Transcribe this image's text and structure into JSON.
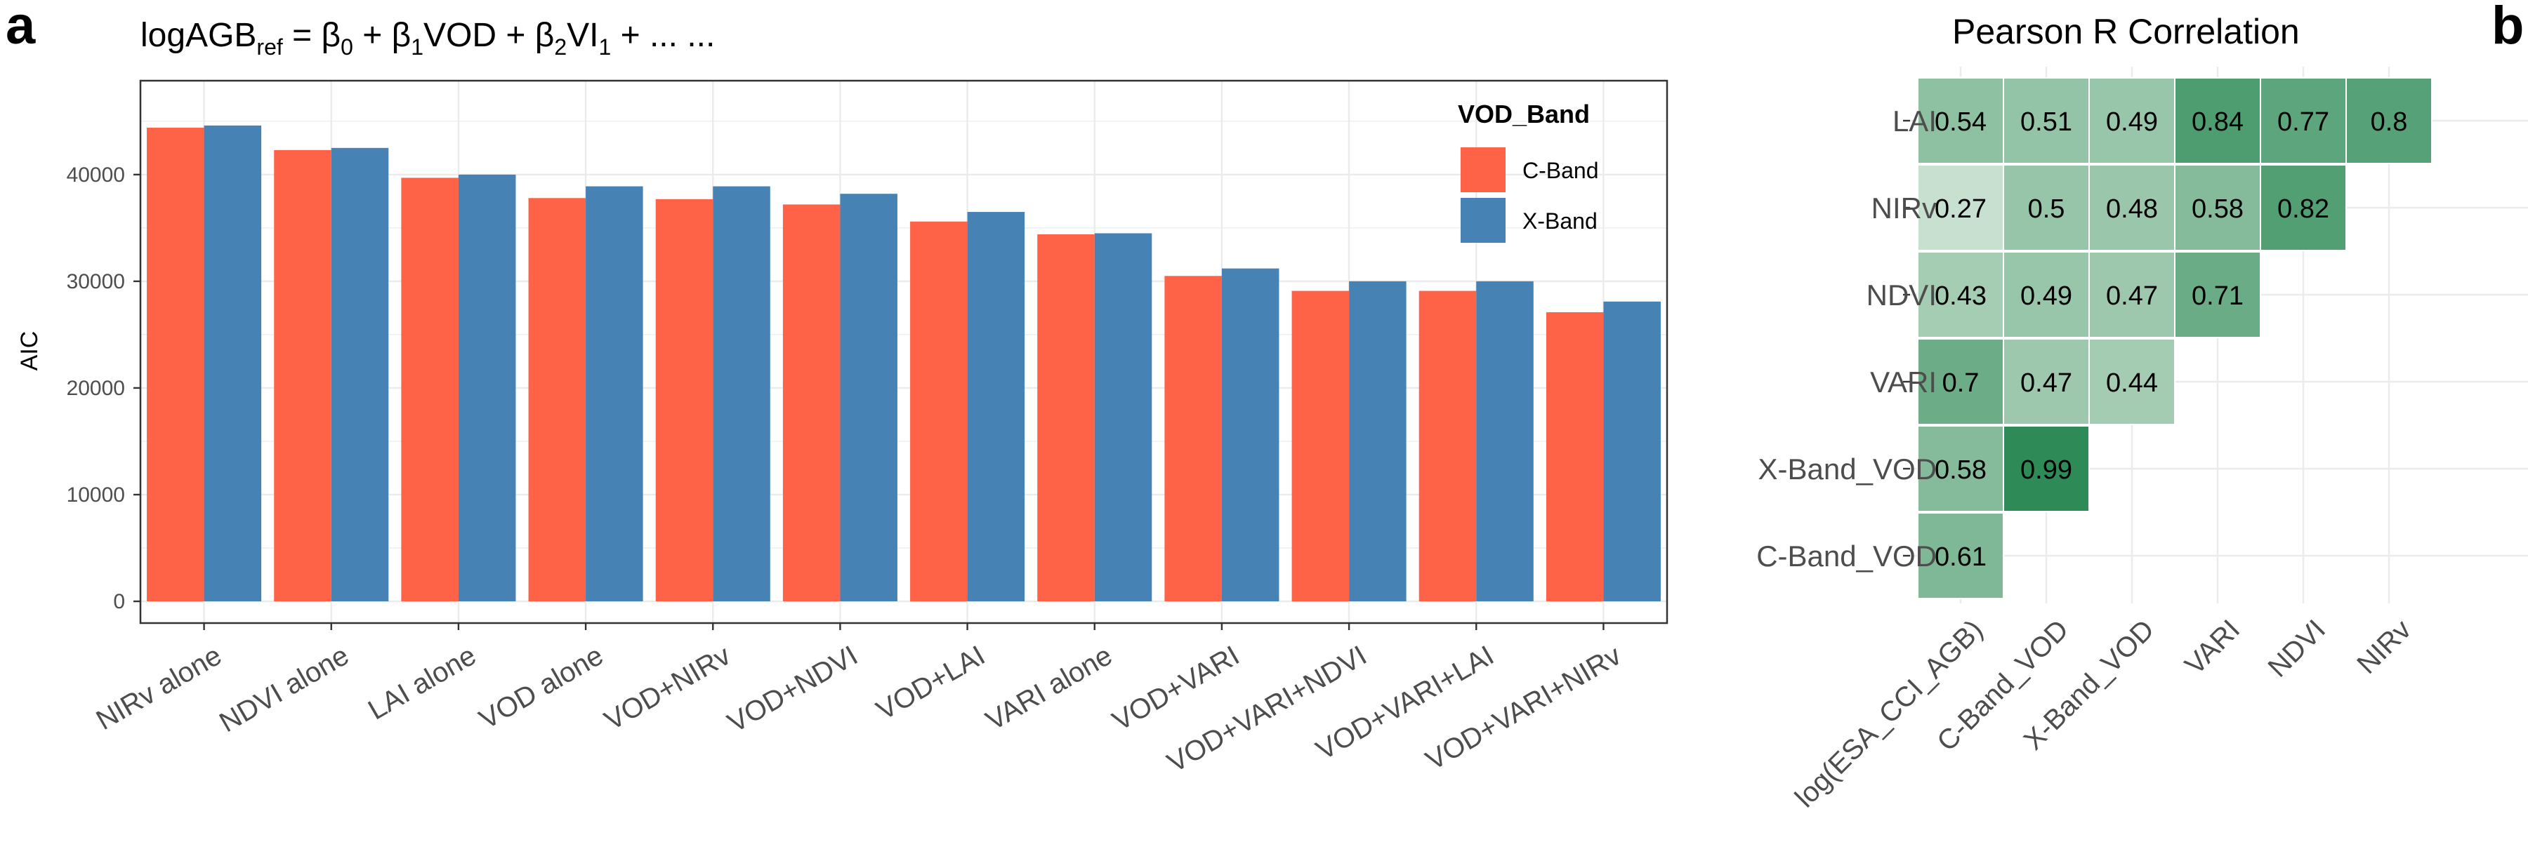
{
  "panel_a": {
    "label": "a",
    "title_main": "logAGB",
    "title_sub_ref": "ref",
    "title_part1": " = β",
    "title_sub_0": "0",
    "title_part2": " + β",
    "title_sub_1": "1",
    "title_part3": "VOD + β",
    "title_sub_2": "2",
    "title_part4": "VI",
    "title_sub_vi": "1",
    "title_part5": " + ... ...",
    "legend_title": "VOD_Band",
    "colors": {
      "C-Band": "#ff6347",
      "X-Band": "#4682b4",
      "grid": "#ebebeb",
      "border": "#333333"
    }
  },
  "panel_b": {
    "label": "b",
    "title": "Pearson R Correlation",
    "color_low": "#c7e0cf",
    "color_high": "#2e8b57"
  },
  "chart_data": [
    {
      "type": "bar",
      "title": "logAGBref = β0 + β1VOD + β2VI1 + ... ...",
      "xlabel": "",
      "ylabel": "AIC",
      "ylim": [
        0,
        46500
      ],
      "yticks": [
        0,
        10000,
        20000,
        30000,
        40000
      ],
      "ytick_labels": [
        "0",
        "10000",
        "20000",
        "30000",
        "40000"
      ],
      "grid": true,
      "legend_position": "top-right",
      "categories": [
        "NIRv alone",
        "NDVI alone",
        "LAI alone",
        "VOD alone",
        "VOD+NIRv",
        "VOD+NDVI",
        "VOD+LAI",
        "VARI alone",
        "VOD+VARI",
        "VOD+VARI+NDVI",
        "VOD+VARI+LAI",
        "VOD+VARI+NIRv"
      ],
      "series": [
        {
          "name": "C-Band",
          "color": "#ff6347",
          "values": [
            44400,
            42300,
            39700,
            37800,
            37700,
            37200,
            35600,
            34400,
            30500,
            29100,
            29100,
            27100
          ]
        },
        {
          "name": "X-Band",
          "color": "#4682b4",
          "values": [
            44600,
            42500,
            40000,
            38900,
            38900,
            38200,
            36500,
            34500,
            31200,
            30000,
            30000,
            28100
          ]
        }
      ]
    },
    {
      "type": "heatmap",
      "title": "Pearson R Correlation",
      "x_categories": [
        "log(ESA_CCI_AGB)",
        "C-Band_VOD",
        "X-Band_VOD",
        "VARI",
        "NDVI",
        "NIRv"
      ],
      "y_categories": [
        "LAI",
        "NIRv",
        "NDVI",
        "VARI",
        "X-Band_VOD",
        "C-Band_VOD"
      ],
      "grid": true,
      "cells": [
        {
          "x": "log(ESA_CCI_AGB)",
          "y": "LAI",
          "value": 0.54,
          "label": "0.54"
        },
        {
          "x": "C-Band_VOD",
          "y": "LAI",
          "value": 0.51,
          "label": "0.51"
        },
        {
          "x": "X-Band_VOD",
          "y": "LAI",
          "value": 0.49,
          "label": "0.49"
        },
        {
          "x": "VARI",
          "y": "LAI",
          "value": 0.84,
          "label": "0.84"
        },
        {
          "x": "NDVI",
          "y": "LAI",
          "value": 0.77,
          "label": "0.77"
        },
        {
          "x": "NIRv",
          "y": "LAI",
          "value": 0.8,
          "label": "0.8"
        },
        {
          "x": "log(ESA_CCI_AGB)",
          "y": "NIRv",
          "value": 0.27,
          "label": "0.27"
        },
        {
          "x": "C-Band_VOD",
          "y": "NIRv",
          "value": 0.5,
          "label": "0.5"
        },
        {
          "x": "X-Band_VOD",
          "y": "NIRv",
          "value": 0.48,
          "label": "0.48"
        },
        {
          "x": "VARI",
          "y": "NIRv",
          "value": 0.58,
          "label": "0.58"
        },
        {
          "x": "NDVI",
          "y": "NIRv",
          "value": 0.82,
          "label": "0.82"
        },
        {
          "x": "log(ESA_CCI_AGB)",
          "y": "NDVI",
          "value": 0.43,
          "label": "0.43"
        },
        {
          "x": "C-Band_VOD",
          "y": "NDVI",
          "value": 0.49,
          "label": "0.49"
        },
        {
          "x": "X-Band_VOD",
          "y": "NDVI",
          "value": 0.47,
          "label": "0.47"
        },
        {
          "x": "VARI",
          "y": "NDVI",
          "value": 0.71,
          "label": "0.71"
        },
        {
          "x": "log(ESA_CCI_AGB)",
          "y": "VARI",
          "value": 0.7,
          "label": "0.7"
        },
        {
          "x": "C-Band_VOD",
          "y": "VARI",
          "value": 0.47,
          "label": "0.47"
        },
        {
          "x": "X-Band_VOD",
          "y": "VARI",
          "value": 0.44,
          "label": "0.44"
        },
        {
          "x": "log(ESA_CCI_AGB)",
          "y": "X-Band_VOD",
          "value": 0.58,
          "label": "0.58"
        },
        {
          "x": "C-Band_VOD",
          "y": "X-Band_VOD",
          "value": 0.99,
          "label": "0.99"
        },
        {
          "x": "log(ESA_CCI_AGB)",
          "y": "C-Band_VOD",
          "value": 0.61,
          "label": "0.61"
        }
      ]
    }
  ]
}
